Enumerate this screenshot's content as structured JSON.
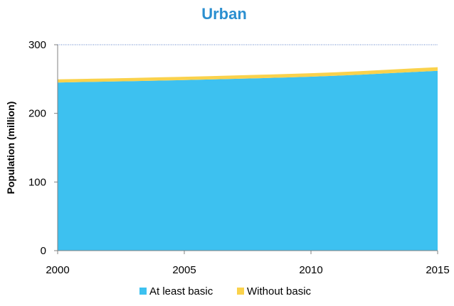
{
  "chart_data": {
    "type": "area",
    "stacked": true,
    "title": "Urban",
    "xlabel": "",
    "ylabel": "Population (million)",
    "xlim": [
      2000,
      2015
    ],
    "ylim": [
      0,
      300
    ],
    "x_ticks": [
      "2000",
      "2005",
      "2010",
      "2015"
    ],
    "y_ticks": [
      "0",
      "100",
      "200",
      "300"
    ],
    "x": [
      2000,
      2001,
      2002,
      2003,
      2004,
      2005,
      2006,
      2007,
      2008,
      2009,
      2010,
      2011,
      2012,
      2013,
      2014,
      2015
    ],
    "series": [
      {
        "name": "At least basic",
        "color": "#3dc1f0",
        "values": [
          245,
          245.7,
          246.3,
          247,
          247.8,
          248.5,
          249.4,
          250.3,
          251.3,
          252.3,
          253.5,
          254.9,
          256.5,
          258.3,
          260.2,
          262
        ]
      },
      {
        "name": "Without basic",
        "color": "#fad24c",
        "values": [
          4.5,
          4.5,
          4.6,
          4.6,
          4.7,
          4.8,
          4.8,
          4.9,
          4.9,
          5,
          5,
          5.1,
          5.1,
          5.2,
          5.2,
          5.3
        ]
      }
    ],
    "grid": false,
    "top_reference_line": true,
    "legend_position": "bottom",
    "title_color": "#2b8fd0"
  }
}
